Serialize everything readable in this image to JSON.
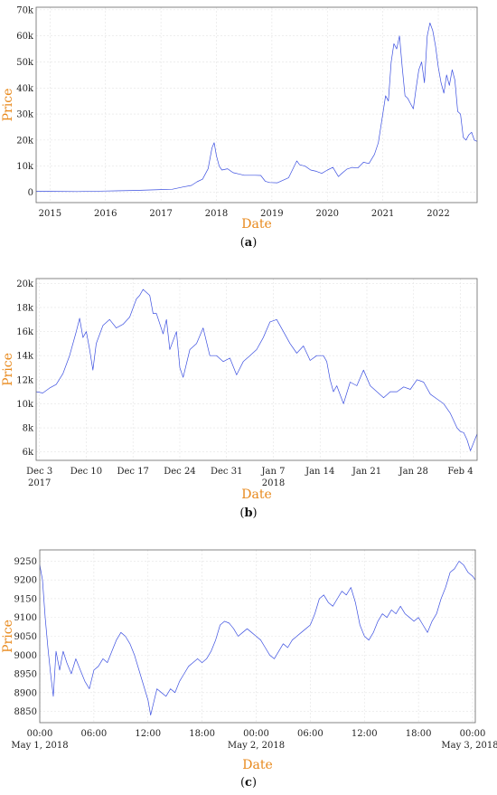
{
  "chart_data": [
    {
      "type": "line",
      "caption": "a",
      "xlabel": "Date",
      "ylabel": "Price",
      "xlim": [
        2014.75,
        2022.7
      ],
      "ylim": [
        -4000,
        71000
      ],
      "grid": true,
      "x_ticks": [
        {
          "value": 2015,
          "label": "2015"
        },
        {
          "value": 2016,
          "label": "2016"
        },
        {
          "value": 2017,
          "label": "2017"
        },
        {
          "value": 2018,
          "label": "2018"
        },
        {
          "value": 2019,
          "label": "2019"
        },
        {
          "value": 2020,
          "label": "2020"
        },
        {
          "value": 2021,
          "label": "2021"
        },
        {
          "value": 2022,
          "label": "2022"
        }
      ],
      "y_ticks": [
        {
          "value": 0,
          "label": "0"
        },
        {
          "value": 10000,
          "label": "10k"
        },
        {
          "value": 20000,
          "label": "20k"
        },
        {
          "value": 30000,
          "label": "30k"
        },
        {
          "value": 40000,
          "label": "40k"
        },
        {
          "value": 50000,
          "label": "50k"
        },
        {
          "value": 60000,
          "label": "60k"
        },
        {
          "value": 70000,
          "label": "70k"
        }
      ],
      "series": [
        {
          "color": "#3b4fe0",
          "x": [
            2014.75,
            2015.0,
            2015.5,
            2016.0,
            2016.5,
            2017.0,
            2017.2,
            2017.4,
            2017.55,
            2017.65,
            2017.75,
            2017.85,
            2017.92,
            2017.96,
            2018.0,
            2018.05,
            2018.1,
            2018.2,
            2018.3,
            2018.4,
            2018.5,
            2018.6,
            2018.7,
            2018.8,
            2018.88,
            2018.96,
            2019.1,
            2019.3,
            2019.45,
            2019.5,
            2019.6,
            2019.7,
            2019.8,
            2019.9,
            2020.0,
            2020.1,
            2020.2,
            2020.25,
            2020.35,
            2020.45,
            2020.55,
            2020.65,
            2020.75,
            2020.85,
            2020.92,
            2021.0,
            2021.05,
            2021.1,
            2021.15,
            2021.2,
            2021.25,
            2021.3,
            2021.35,
            2021.4,
            2021.45,
            2021.5,
            2021.55,
            2021.6,
            2021.65,
            2021.7,
            2021.75,
            2021.8,
            2021.85,
            2021.9,
            2021.95,
            2022.0,
            2022.05,
            2022.1,
            2022.15,
            2022.2,
            2022.25,
            2022.3,
            2022.35,
            2022.4,
            2022.45,
            2022.5,
            2022.55,
            2022.6,
            2022.65,
            2022.7
          ],
          "y": [
            350,
            300,
            250,
            430,
            650,
            1000,
            1100,
            2000,
            2600,
            4000,
            5000,
            9000,
            17000,
            19000,
            14000,
            10000,
            8500,
            9000,
            7500,
            7000,
            6500,
            6500,
            6500,
            6400,
            4200,
            3700,
            3600,
            5500,
            12000,
            10500,
            10000,
            8500,
            8000,
            7200,
            8500,
            9500,
            6000,
            7000,
            8800,
            9500,
            9300,
            11500,
            11000,
            14500,
            19000,
            30000,
            37000,
            35000,
            50000,
            57000,
            55000,
            60000,
            48000,
            37000,
            36000,
            34000,
            32000,
            40000,
            47000,
            50000,
            42000,
            60000,
            65000,
            62000,
            56000,
            48000,
            42000,
            38000,
            45000,
            41000,
            47000,
            43000,
            31000,
            30000,
            21000,
            20000,
            22000,
            23000,
            20000,
            19500
          ]
        }
      ]
    },
    {
      "type": "line",
      "caption": "b",
      "xlabel": "Date",
      "ylabel": "Price",
      "xlim": [
        0,
        66
      ],
      "ylim": [
        5300,
        20400
      ],
      "grid": true,
      "x_ticks": [
        {
          "value": 0.5,
          "label": "Dec 3",
          "sub": "2017"
        },
        {
          "value": 7.5,
          "label": "Dec 10",
          "sub": ""
        },
        {
          "value": 14.5,
          "label": "Dec 17",
          "sub": ""
        },
        {
          "value": 21.5,
          "label": "Dec 24",
          "sub": ""
        },
        {
          "value": 28.5,
          "label": "Dec 31",
          "sub": ""
        },
        {
          "value": 35.5,
          "label": "Jan 7",
          "sub": "2018"
        },
        {
          "value": 42.5,
          "label": "Jan 14",
          "sub": ""
        },
        {
          "value": 49.5,
          "label": "Jan 21",
          "sub": ""
        },
        {
          "value": 56.5,
          "label": "Jan 28",
          "sub": ""
        },
        {
          "value": 63.5,
          "label": "Feb 4",
          "sub": ""
        }
      ],
      "y_ticks": [
        {
          "value": 6000,
          "label": "6k"
        },
        {
          "value": 8000,
          "label": "8k"
        },
        {
          "value": 10000,
          "label": "10k"
        },
        {
          "value": 12000,
          "label": "12k"
        },
        {
          "value": 14000,
          "label": "14k"
        },
        {
          "value": 16000,
          "label": "16k"
        },
        {
          "value": 18000,
          "label": "18k"
        },
        {
          "value": 20000,
          "label": "20k"
        }
      ],
      "series": [
        {
          "color": "#3b4fe0",
          "x": [
            0,
            1,
            2,
            3,
            4,
            5,
            6,
            6.5,
            7,
            7.5,
            8,
            8.5,
            9,
            10,
            11,
            12,
            13,
            14,
            15,
            15.5,
            16,
            17,
            17.5,
            18,
            19,
            19.5,
            20,
            21,
            21.5,
            22,
            23,
            24,
            25,
            26,
            27,
            28,
            29,
            30,
            31,
            32,
            33,
            34,
            35,
            36,
            37,
            38,
            39,
            40,
            41,
            42,
            43,
            43.5,
            44,
            44.5,
            45,
            46,
            47,
            48,
            49,
            50,
            51,
            52,
            53,
            54,
            55,
            56,
            57,
            58,
            59,
            60,
            61,
            62,
            63,
            63.5,
            64,
            64.5,
            65,
            66
          ],
          "y": [
            11000,
            10900,
            11300,
            11600,
            12500,
            14000,
            16000,
            17100,
            15500,
            16000,
            14500,
            12800,
            15000,
            16500,
            17000,
            16300,
            16600,
            17200,
            18700,
            19000,
            19500,
            19000,
            17500,
            17500,
            15800,
            17000,
            14500,
            16000,
            13000,
            12200,
            14500,
            15000,
            16300,
            14000,
            14000,
            13500,
            13800,
            12400,
            13500,
            14000,
            14500,
            15500,
            16800,
            17000,
            16000,
            15000,
            14200,
            14800,
            13600,
            14000,
            14000,
            13500,
            12000,
            11000,
            11500,
            10000,
            11800,
            11500,
            12800,
            11500,
            11000,
            10500,
            11000,
            11000,
            11400,
            11200,
            12000,
            11800,
            10800,
            10400,
            10000,
            9200,
            8000,
            7700,
            7600,
            7000,
            6100,
            7500
          ]
        }
      ]
    },
    {
      "type": "line",
      "caption": "c",
      "xlabel": "Date",
      "ylabel": "Price",
      "xlim": [
        0,
        48.3
      ],
      "ylim": [
        8820,
        9280
      ],
      "grid": true,
      "x_ticks": [
        {
          "value": 0,
          "label": "00:00",
          "sub": "May 1, 2018"
        },
        {
          "value": 6,
          "label": "06:00",
          "sub": ""
        },
        {
          "value": 12,
          "label": "12:00",
          "sub": ""
        },
        {
          "value": 18,
          "label": "18:00",
          "sub": ""
        },
        {
          "value": 24,
          "label": "00:00",
          "sub": "May 2, 2018"
        },
        {
          "value": 30,
          "label": "06:00",
          "sub": ""
        },
        {
          "value": 36,
          "label": "12:00",
          "sub": ""
        },
        {
          "value": 42,
          "label": "18:00",
          "sub": ""
        },
        {
          "value": 48,
          "label": "00:00",
          "sub": "May 3, 2018"
        }
      ],
      "y_ticks": [
        {
          "value": 8850,
          "label": "8850"
        },
        {
          "value": 8900,
          "label": "8900"
        },
        {
          "value": 8950,
          "label": "8950"
        },
        {
          "value": 9000,
          "label": "9000"
        },
        {
          "value": 9050,
          "label": "9050"
        },
        {
          "value": 9100,
          "label": "9100"
        },
        {
          "value": 9150,
          "label": "9150"
        },
        {
          "value": 9200,
          "label": "9200"
        },
        {
          "value": 9250,
          "label": "9250"
        }
      ],
      "series": [
        {
          "color": "#3b4fe0",
          "x": [
            0,
            0.3,
            0.6,
            0.9,
            1.2,
            1.5,
            1.8,
            2.2,
            2.6,
            3.0,
            3.5,
            4.0,
            4.5,
            5.0,
            5.5,
            6.0,
            6.5,
            7.0,
            7.5,
            8.0,
            8.5,
            9.0,
            9.5,
            10.0,
            10.5,
            11.0,
            11.5,
            12.0,
            12.3,
            12.6,
            13.0,
            13.5,
            14.0,
            14.5,
            15.0,
            15.5,
            16.0,
            16.5,
            17.0,
            17.5,
            18.0,
            18.5,
            19.0,
            19.5,
            20.0,
            20.5,
            21.0,
            21.5,
            22.0,
            22.5,
            23.0,
            23.5,
            24.0,
            24.5,
            25.0,
            25.5,
            26.0,
            26.5,
            27.0,
            27.5,
            28.0,
            28.5,
            29.0,
            29.5,
            30.0,
            30.5,
            31.0,
            31.5,
            32.0,
            32.5,
            33.0,
            33.5,
            34.0,
            34.5,
            35.0,
            35.5,
            36.0,
            36.5,
            37.0,
            37.5,
            38.0,
            38.5,
            39.0,
            39.5,
            40.0,
            40.5,
            41.0,
            41.5,
            42.0,
            42.5,
            43.0,
            43.5,
            44.0,
            44.5,
            45.0,
            45.5,
            46.0,
            46.5,
            47.0,
            47.5,
            48.0,
            48.3
          ],
          "y": [
            9240,
            9200,
            9100,
            9020,
            8950,
            8890,
            9010,
            8960,
            9010,
            8980,
            8950,
            8990,
            8960,
            8930,
            8910,
            8960,
            8970,
            8990,
            8980,
            9010,
            9040,
            9060,
            9050,
            9030,
            9000,
            8960,
            8920,
            8880,
            8840,
            8870,
            8910,
            8900,
            8890,
            8910,
            8900,
            8930,
            8950,
            8970,
            8980,
            8990,
            8980,
            8990,
            9010,
            9040,
            9080,
            9090,
            9085,
            9070,
            9050,
            9060,
            9070,
            9060,
            9050,
            9040,
            9020,
            9000,
            8990,
            9010,
            9030,
            9020,
            9040,
            9050,
            9060,
            9070,
            9080,
            9110,
            9150,
            9160,
            9140,
            9130,
            9150,
            9170,
            9160,
            9180,
            9140,
            9080,
            9050,
            9040,
            9060,
            9090,
            9110,
            9100,
            9120,
            9110,
            9130,
            9110,
            9100,
            9090,
            9100,
            9080,
            9060,
            9090,
            9110,
            9150,
            9180,
            9220,
            9230,
            9250,
            9240,
            9220,
            9210,
            9200
          ]
        }
      ]
    }
  ]
}
